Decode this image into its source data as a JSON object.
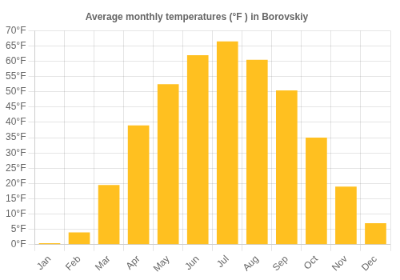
{
  "chart_data": {
    "type": "bar",
    "title": "Average monthly temperatures (°F ) in Borovskiy",
    "categories": [
      "Jan",
      "Feb",
      "Mar",
      "Apr",
      "May",
      "Jun",
      "Jul",
      "Aug",
      "Sep",
      "Oct",
      "Nov",
      "Dec"
    ],
    "values": [
      0.5,
      4.0,
      19.5,
      39.0,
      52.5,
      62.0,
      66.5,
      60.5,
      50.5,
      35.0,
      19.0,
      7.0
    ],
    "color": "#FFC020",
    "ylim": [
      0,
      70
    ],
    "yticks": [
      {
        "value": 0,
        "label": "0°F"
      },
      {
        "value": 5,
        "label": "5°F"
      },
      {
        "value": 10,
        "label": "10°F"
      },
      {
        "value": 15,
        "label": "15°F"
      },
      {
        "value": 20,
        "label": "20°F"
      },
      {
        "value": 25,
        "label": "25°F"
      },
      {
        "value": 30,
        "label": "30°F"
      },
      {
        "value": 35,
        "label": "35°F"
      },
      {
        "value": 40,
        "label": "40°F"
      },
      {
        "value": 45,
        "label": "45°F"
      },
      {
        "value": 50,
        "label": "50°F"
      },
      {
        "value": 55,
        "label": "55°F"
      },
      {
        "value": 60,
        "label": "60°F"
      },
      {
        "value": 65,
        "label": "65°F"
      },
      {
        "value": 70,
        "label": "70°F"
      }
    ],
    "grid": true
  }
}
